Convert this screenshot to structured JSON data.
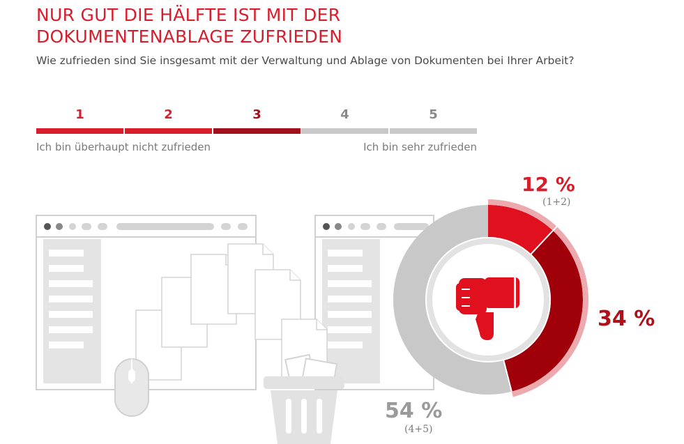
{
  "header": {
    "title_line1": "NUR GUT DIE HÄLFTE IST MIT DER",
    "title_line2": "DOKUMENTENABLAGE ZUFRIEDEN",
    "subtitle": "Wie zufrieden sind Sie insgesamt mit der Verwaltung und Ablage von Dokumenten bei Ihrer Arbeit?"
  },
  "scale": {
    "items": [
      {
        "label": "1",
        "color": "#d81e2c"
      },
      {
        "label": "2",
        "color": "#d81e2c"
      },
      {
        "label": "3",
        "color": "#a0101a"
      },
      {
        "label": "4",
        "color": "#c8c8c8"
      },
      {
        "label": "5",
        "color": "#c8c8c8"
      }
    ],
    "left_caption": "Ich bin überhaupt nicht zufrieden",
    "right_caption": "Ich bin sehr zufrieden"
  },
  "chart_data": {
    "type": "pie",
    "variant": "donut",
    "categories": [
      "1+2",
      "3",
      "4+5"
    ],
    "values": [
      12,
      34,
      54
    ],
    "unit": "%",
    "labels": [
      {
        "value": "12 %",
        "sub": "(1+2)"
      },
      {
        "value": "34 %",
        "sub": ""
      },
      {
        "value": "54 %",
        "sub": "(4+5)"
      }
    ],
    "colors": [
      "#e0101f",
      "#a0000a",
      "#c8c8c8"
    ],
    "outer_ring_color": "#ecaaaf",
    "center_icon": "thumbs-down-icon"
  },
  "icons": {
    "center": "thumbs-down-icon",
    "illustration": [
      "browser-window-icon",
      "document-icon",
      "mouse-icon",
      "trash-can-icon"
    ]
  }
}
